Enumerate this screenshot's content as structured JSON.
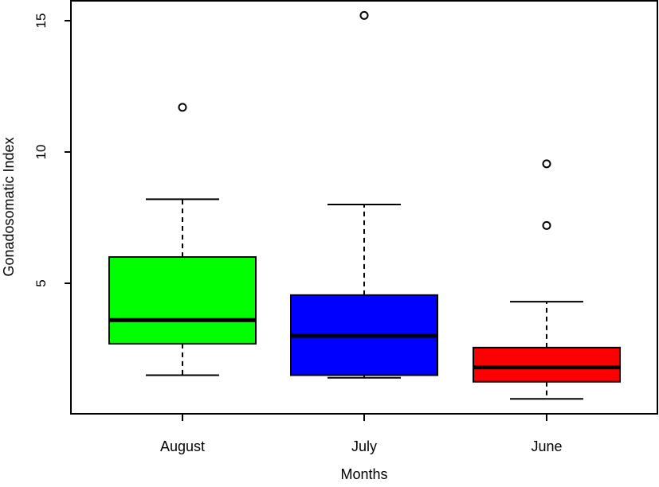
{
  "chart_data": {
    "type": "boxplot",
    "title": "",
    "xlabel": "Months",
    "ylabel": "Gonadosomatic Index",
    "ylim": [
      0.3,
      15.8
    ],
    "yticks": [
      5,
      10,
      15
    ],
    "grid": false,
    "legend": "none",
    "categories": [
      "August",
      "July",
      "June"
    ],
    "boxes": [
      {
        "category": "August",
        "color": "#00ff00",
        "whisker_low": 1.5,
        "q1": 2.7,
        "median": 3.6,
        "q3": 6.0,
        "whisker_high": 8.2,
        "outliers": [
          11.7
        ]
      },
      {
        "category": "July",
        "color": "#0000ff",
        "whisker_low": 1.4,
        "q1": 1.5,
        "median": 3.0,
        "q3": 4.55,
        "whisker_high": 8.0,
        "outliers": [
          15.2
        ]
      },
      {
        "category": "June",
        "color": "#ff0000",
        "whisker_low": 0.6,
        "q1": 1.25,
        "median": 1.8,
        "q3": 2.55,
        "whisker_high": 4.3,
        "outliers": [
          7.2,
          9.55
        ]
      }
    ]
  }
}
